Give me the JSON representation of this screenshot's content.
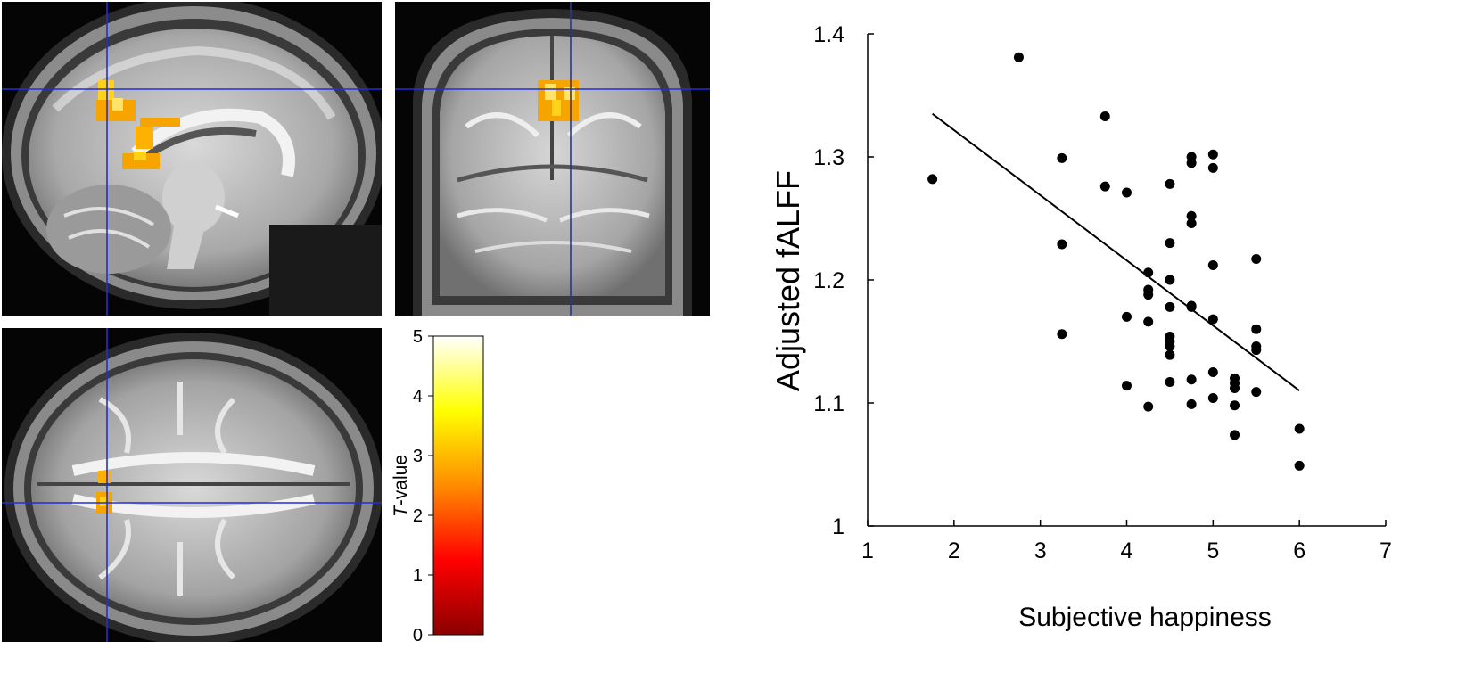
{
  "brain_panels": {
    "sagittal": {
      "label": "sagittal brain slice"
    },
    "coronal": {
      "label": "coronal brain slice"
    },
    "axial": {
      "label": "axial brain slice"
    },
    "crosshair_color": "#1f2fd6",
    "activation_colors": [
      "#f5a400",
      "#ffd21a",
      "#ff8a00"
    ]
  },
  "colorbar": {
    "label_italic": "T",
    "label_rest": "-value",
    "ticks": [
      "0",
      "1",
      "2",
      "3",
      "4",
      "5"
    ],
    "min": 0,
    "max": 5,
    "stops": [
      "#8b0000",
      "#ff0000",
      "#ff8c00",
      "#ffff00",
      "#ffffff"
    ]
  },
  "chart_data": {
    "type": "scatter",
    "title": "",
    "xlabel": "Subjective happiness",
    "ylabel": "Adjusted fALFF",
    "xlim": [
      1,
      7
    ],
    "ylim": [
      1.0,
      1.4
    ],
    "x_ticks": [
      "1",
      "2",
      "3",
      "4",
      "5",
      "6",
      "7"
    ],
    "y_ticks": [
      "1",
      "1.1",
      "1.2",
      "1.3",
      "1.4"
    ],
    "grid": false,
    "points": [
      [
        1.75,
        1.282
      ],
      [
        2.75,
        1.381
      ],
      [
        3.25,
        1.299
      ],
      [
        3.25,
        1.229
      ],
      [
        3.25,
        1.156
      ],
      [
        3.75,
        1.333
      ],
      [
        3.75,
        1.276
      ],
      [
        4.0,
        1.271
      ],
      [
        4.0,
        1.17
      ],
      [
        4.0,
        1.114
      ],
      [
        4.25,
        1.206
      ],
      [
        4.25,
        1.192
      ],
      [
        4.25,
        1.188
      ],
      [
        4.25,
        1.166
      ],
      [
        4.25,
        1.097
      ],
      [
        4.5,
        1.278
      ],
      [
        4.5,
        1.23
      ],
      [
        4.5,
        1.2
      ],
      [
        4.5,
        1.178
      ],
      [
        4.5,
        1.154
      ],
      [
        4.5,
        1.15
      ],
      [
        4.5,
        1.146
      ],
      [
        4.5,
        1.139
      ],
      [
        4.5,
        1.117
      ],
      [
        4.75,
        1.3
      ],
      [
        4.75,
        1.295
      ],
      [
        4.75,
        1.252
      ],
      [
        4.75,
        1.246
      ],
      [
        4.75,
        1.179
      ],
      [
        4.75,
        1.178
      ],
      [
        4.75,
        1.119
      ],
      [
        4.75,
        1.099
      ],
      [
        5.0,
        1.302
      ],
      [
        5.0,
        1.291
      ],
      [
        5.0,
        1.212
      ],
      [
        5.0,
        1.168
      ],
      [
        5.0,
        1.125
      ],
      [
        5.0,
        1.104
      ],
      [
        5.25,
        1.12
      ],
      [
        5.25,
        1.116
      ],
      [
        5.25,
        1.112
      ],
      [
        5.25,
        1.098
      ],
      [
        5.25,
        1.074
      ],
      [
        5.5,
        1.217
      ],
      [
        5.5,
        1.16
      ],
      [
        5.5,
        1.146
      ],
      [
        5.5,
        1.143
      ],
      [
        5.5,
        1.109
      ],
      [
        6.0,
        1.079
      ],
      [
        6.0,
        1.049
      ]
    ],
    "fit_line": {
      "x": [
        1.75,
        6.0
      ],
      "y": [
        1.335,
        1.11
      ]
    },
    "marker_color": "#000000"
  }
}
